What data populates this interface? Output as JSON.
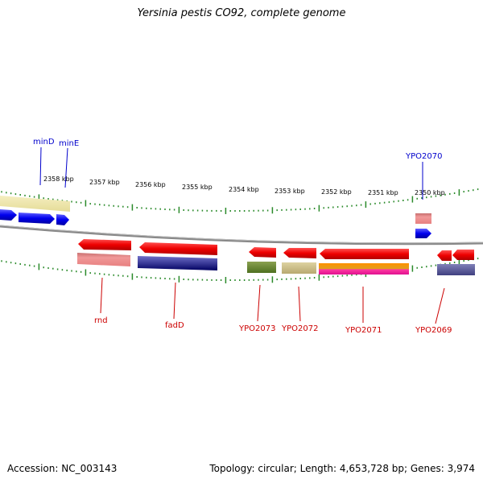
{
  "header": {
    "title": "Yersinia pestis CO92, complete genome"
  },
  "footer": {
    "accession": "Accession: NC_003143",
    "stats": "Topology: circular; Length: 4,653,728 bp; Genes: 3,974"
  },
  "scale_labels": [
    "2358 kbp",
    "2357 kbp",
    "2356 kbp",
    "2355 kbp",
    "2354 kbp",
    "2353 kbp",
    "2352 kbp",
    "2351 kbp",
    "2350 kbp"
  ],
  "genes_forward": [
    {
      "name": "minD"
    },
    {
      "name": "minE"
    },
    {
      "name": "YPO2070"
    }
  ],
  "genes_reverse": [
    {
      "name": "rnd"
    },
    {
      "name": "fadD"
    },
    {
      "name": "YPO2073"
    },
    {
      "name": "YPO2072"
    },
    {
      "name": "YPO2071"
    },
    {
      "name": "YPO2069"
    }
  ],
  "colors": {
    "forward_cds": "#0000ee",
    "reverse_cds": "#ee0000",
    "tick": "#2a8a2a",
    "backbone": "#888888"
  }
}
